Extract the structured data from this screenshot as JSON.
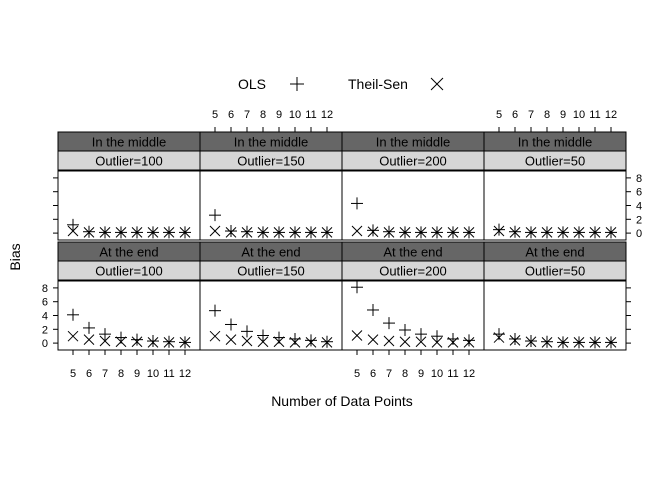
{
  "chart_data": {
    "type": "scatter",
    "title": "",
    "xlabel": "Number of Data Points",
    "ylabel": "Bias",
    "x": [
      5,
      6,
      7,
      8,
      9,
      10,
      11,
      12
    ],
    "x_tick_labels": [
      "5",
      "6",
      "7",
      "8",
      "9",
      "10",
      "11",
      "12"
    ],
    "ylim": [
      -1,
      9
    ],
    "y_ticks": [
      0,
      2,
      4,
      6,
      8
    ],
    "y_tick_labels": [
      "0",
      "2",
      "4",
      "6",
      "8"
    ],
    "legend": {
      "placement": "top",
      "entries": [
        {
          "name": "OLS",
          "symbol": "plus"
        },
        {
          "name": "Theil-Sen",
          "symbol": "cross"
        }
      ]
    },
    "strip_colors": {
      "outer": "#666666",
      "inner": "#d6d6d6"
    },
    "panels": [
      {
        "row": "top",
        "col": 0,
        "strip_outer": "In the middle",
        "strip_inner": "Outlier=100",
        "series": [
          {
            "name": "OLS",
            "values": [
              1.2,
              0.2,
              0.1,
              0.1,
              0.1,
              0.1,
              0.1,
              0.1
            ]
          },
          {
            "name": "Theil-Sen",
            "values": [
              0.3,
              0.1,
              0.1,
              0.1,
              0.1,
              0.1,
              0.1,
              0.1
            ]
          }
        ]
      },
      {
        "row": "top",
        "col": 1,
        "strip_outer": "In the middle",
        "strip_inner": "Outlier=150",
        "series": [
          {
            "name": "OLS",
            "values": [
              2.6,
              0.3,
              0.2,
              0.1,
              0.1,
              0.1,
              0.1,
              0.1
            ]
          },
          {
            "name": "Theil-Sen",
            "values": [
              0.3,
              0.1,
              0.1,
              0.1,
              0.1,
              0.1,
              0.1,
              0.1
            ]
          }
        ]
      },
      {
        "row": "top",
        "col": 2,
        "strip_outer": "In the middle",
        "strip_inner": "Outlier=200",
        "series": [
          {
            "name": "OLS",
            "values": [
              4.3,
              0.4,
              0.2,
              0.1,
              0.1,
              0.1,
              0.1,
              0.1
            ]
          },
          {
            "name": "Theil-Sen",
            "values": [
              0.3,
              0.2,
              0.1,
              0.1,
              0.1,
              0.1,
              0.1,
              0.1
            ]
          }
        ]
      },
      {
        "row": "top",
        "col": 3,
        "strip_outer": "In the middle",
        "strip_inner": "Outlier=50",
        "series": [
          {
            "name": "OLS",
            "values": [
              0.5,
              0.2,
              0.1,
              0.1,
              0.1,
              0.1,
              0.1,
              0.1
            ]
          },
          {
            "name": "Theil-Sen",
            "values": [
              0.3,
              0.1,
              0.1,
              0.1,
              0.1,
              0.1,
              0.1,
              0.1
            ]
          }
        ]
      },
      {
        "row": "bottom",
        "col": 0,
        "strip_outer": "At the end",
        "strip_inner": "Outlier=100",
        "series": [
          {
            "name": "OLS",
            "values": [
              4.1,
              2.2,
              1.3,
              0.8,
              0.5,
              0.3,
              0.2,
              0.1
            ]
          },
          {
            "name": "Theil-Sen",
            "values": [
              1.0,
              0.5,
              0.3,
              0.2,
              0.2,
              0.1,
              0.1,
              0.1
            ]
          }
        ]
      },
      {
        "row": "bottom",
        "col": 1,
        "strip_outer": "At the end",
        "strip_inner": "Outlier=150",
        "series": [
          {
            "name": "OLS",
            "values": [
              4.7,
              2.7,
              1.7,
              1.1,
              0.8,
              0.6,
              0.4,
              0.2
            ]
          },
          {
            "name": "Theil-Sen",
            "values": [
              1.0,
              0.5,
              0.3,
              0.2,
              0.2,
              0.1,
              0.1,
              0.1
            ]
          }
        ]
      },
      {
        "row": "bottom",
        "col": 2,
        "strip_outer": "At the end",
        "strip_inner": "Outlier=200",
        "series": [
          {
            "name": "OLS",
            "values": [
              8.1,
              4.8,
              2.9,
              1.9,
              1.3,
              1.0,
              0.6,
              0.4
            ]
          },
          {
            "name": "Theil-Sen",
            "values": [
              1.1,
              0.5,
              0.3,
              0.2,
              0.2,
              0.1,
              0.1,
              0.1
            ]
          }
        ]
      },
      {
        "row": "bottom",
        "col": 3,
        "strip_outer": "At the end",
        "strip_inner": "Outlier=50",
        "series": [
          {
            "name": "OLS",
            "values": [
              1.3,
              0.6,
              0.3,
              0.2,
              0.1,
              0.1,
              0.1,
              0.1
            ]
          },
          {
            "name": "Theil-Sen",
            "values": [
              0.8,
              0.4,
              0.2,
              0.1,
              0.1,
              0.1,
              0.1,
              0.1
            ]
          }
        ]
      }
    ]
  }
}
